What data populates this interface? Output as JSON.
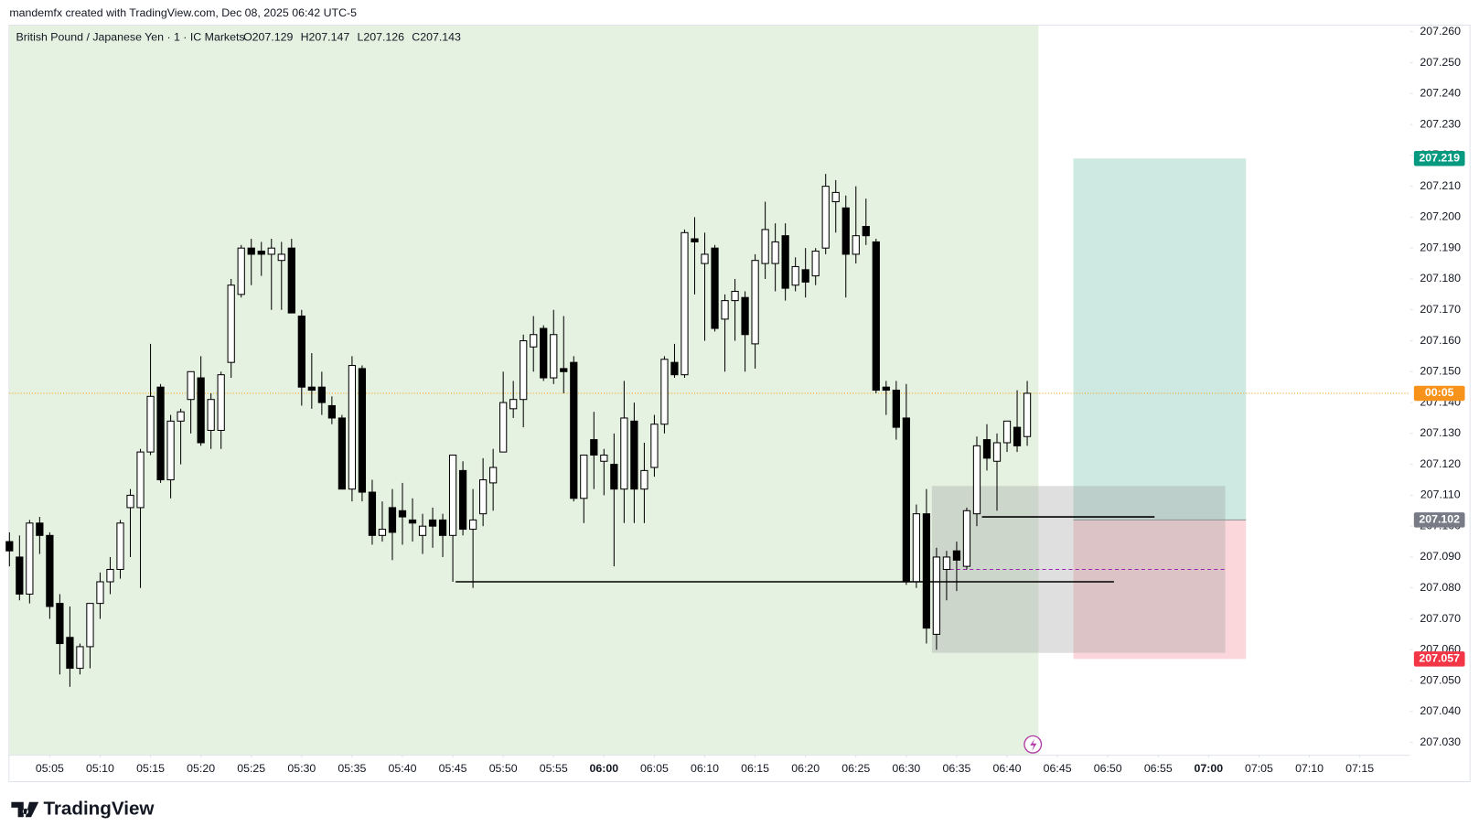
{
  "header": {
    "credit": "mandemfx created with TradingView.com, Dec 08, 2025 06:42 UTC-5",
    "brand": "TradingView"
  },
  "chart_data": {
    "type": "candlestick",
    "title": "British Pound / Japanese Yen · 1 · IC Markets",
    "ohlc_labels": [
      "O207.129",
      "H207.147",
      "L207.126",
      "C207.143"
    ],
    "x": [
      "05:01",
      "05:02",
      "05:03",
      "05:04",
      "05:05",
      "05:06",
      "05:07",
      "05:08",
      "05:09",
      "05:10",
      "05:11",
      "05:12",
      "05:13",
      "05:14",
      "05:15",
      "05:16",
      "05:17",
      "05:18",
      "05:19",
      "05:20",
      "05:21",
      "05:22",
      "05:23",
      "05:24",
      "05:25",
      "05:26",
      "05:27",
      "05:28",
      "05:29",
      "05:30",
      "05:31",
      "05:32",
      "05:33",
      "05:34",
      "05:35",
      "05:36",
      "05:37",
      "05:38",
      "05:39",
      "05:40",
      "05:41",
      "05:42",
      "05:43",
      "05:44",
      "05:45",
      "05:46",
      "05:47",
      "05:48",
      "05:49",
      "05:50",
      "05:51",
      "05:52",
      "05:53",
      "05:54",
      "05:55",
      "05:56",
      "05:57",
      "05:58",
      "05:59",
      "06:00",
      "06:01",
      "06:02",
      "06:03",
      "06:04",
      "06:05",
      "06:06",
      "06:07",
      "06:08",
      "06:09",
      "06:10",
      "06:11",
      "06:12",
      "06:13",
      "06:14",
      "06:15",
      "06:16",
      "06:17",
      "06:18",
      "06:19",
      "06:20",
      "06:21",
      "06:22",
      "06:23",
      "06:24",
      "06:25",
      "06:26",
      "06:27",
      "06:28",
      "06:29",
      "06:30",
      "06:31",
      "06:32",
      "06:33",
      "06:34",
      "06:35",
      "06:36",
      "06:37",
      "06:38",
      "06:39",
      "06:40",
      "06:41",
      "06:42"
    ],
    "open": [
      207.095,
      207.09,
      207.078,
      207.101,
      207.097,
      207.075,
      207.064,
      207.054,
      207.061,
      207.075,
      207.082,
      207.086,
      207.106,
      207.106,
      207.124,
      207.145,
      207.115,
      207.134,
      207.141,
      207.148,
      207.131,
      207.131,
      207.153,
      207.175,
      207.19,
      207.189,
      207.188,
      207.186,
      207.19,
      207.168,
      207.145,
      207.145,
      207.139,
      207.135,
      207.112,
      207.151,
      207.111,
      207.097,
      207.106,
      207.105,
      207.102,
      207.097,
      207.102,
      207.102,
      207.097,
      207.118,
      207.099,
      207.104,
      207.114,
      207.124,
      207.138,
      207.141,
      207.158,
      207.164,
      207.148,
      207.151,
      207.153,
      207.109,
      207.128,
      207.121,
      207.12,
      207.112,
      207.134,
      207.112,
      207.119,
      207.133,
      207.153,
      207.149,
      207.193,
      207.185,
      207.19,
      207.167,
      207.173,
      207.174,
      207.159,
      207.185,
      207.185,
      207.194,
      207.178,
      207.183,
      207.181,
      207.19,
      207.205,
      207.203,
      207.188,
      207.197,
      207.192,
      207.145,
      207.144,
      207.135,
      207.082,
      207.104,
      207.065,
      207.086,
      207.092,
      207.087,
      207.104,
      207.128,
      207.121,
      207.127,
      207.132,
      207.129
    ],
    "high": [
      207.098,
      207.097,
      207.102,
      207.103,
      207.098,
      207.078,
      207.074,
      207.062,
      207.074,
      207.085,
      207.09,
      207.102,
      207.112,
      207.125,
      207.159,
      207.146,
      207.136,
      207.138,
      207.15,
      207.155,
      207.143,
      207.15,
      207.18,
      207.191,
      207.193,
      207.192,
      207.193,
      207.192,
      207.193,
      207.17,
      207.156,
      207.15,
      207.142,
      207.136,
      207.155,
      207.152,
      207.115,
      207.108,
      207.112,
      207.114,
      207.109,
      207.104,
      207.106,
      207.104,
      207.123,
      207.121,
      207.112,
      207.122,
      207.125,
      207.15,
      207.147,
      207.162,
      207.168,
      207.165,
      207.17,
      207.168,
      207.155,
      207.123,
      207.137,
      207.125,
      207.13,
      207.147,
      207.14,
      207.127,
      207.136,
      207.155,
      207.159,
      207.196,
      207.2,
      207.195,
      207.191,
      207.175,
      207.18,
      207.176,
      207.188,
      207.205,
      207.198,
      207.198,
      207.187,
      207.19,
      207.19,
      207.214,
      207.212,
      207.207,
      207.21,
      207.206,
      207.193,
      207.147,
      207.147,
      207.146,
      207.107,
      207.112,
      207.093,
      207.092,
      207.095,
      207.106,
      207.129,
      207.133,
      207.13,
      207.134,
      207.144,
      207.147
    ],
    "low": [
      207.087,
      207.076,
      207.075,
      207.091,
      207.07,
      207.052,
      207.048,
      207.052,
      207.054,
      207.07,
      207.078,
      207.083,
      207.09,
      207.08,
      207.123,
      207.114,
      207.109,
      207.12,
      207.13,
      207.126,
      207.125,
      207.125,
      207.148,
      207.174,
      207.178,
      207.181,
      207.17,
      207.17,
      207.169,
      207.139,
      207.138,
      207.136,
      207.133,
      207.112,
      207.108,
      207.108,
      207.094,
      207.095,
      207.089,
      207.094,
      207.095,
      207.091,
      207.093,
      207.09,
      207.082,
      207.097,
      207.08,
      207.1,
      207.105,
      207.124,
      207.135,
      207.132,
      207.15,
      207.147,
      207.146,
      207.143,
      207.108,
      207.101,
      207.112,
      207.11,
      207.087,
      207.101,
      207.101,
      207.101,
      207.116,
      207.13,
      207.148,
      207.148,
      207.175,
      207.16,
      207.163,
      207.15,
      207.16,
      207.15,
      207.151,
      207.18,
      207.176,
      207.173,
      207.176,
      207.174,
      207.178,
      207.188,
      207.195,
      207.174,
      207.185,
      207.191,
      207.143,
      207.136,
      207.128,
      207.081,
      207.08,
      207.062,
      207.06,
      207.076,
      207.079,
      207.086,
      207.1,
      207.118,
      207.105,
      207.124,
      207.124,
      207.126
    ],
    "close": [
      207.092,
      207.078,
      207.101,
      207.097,
      207.074,
      207.062,
      207.054,
      207.061,
      207.075,
      207.082,
      207.086,
      207.101,
      207.11,
      207.124,
      207.142,
      207.115,
      207.134,
      207.137,
      207.15,
      207.127,
      207.141,
      207.149,
      207.178,
      207.19,
      207.188,
      207.188,
      207.19,
      207.188,
      207.169,
      207.145,
      207.144,
      207.14,
      207.135,
      207.112,
      207.152,
      207.111,
      207.097,
      207.099,
      207.098,
      207.103,
      207.101,
      207.1,
      207.1,
      207.097,
      207.123,
      207.099,
      207.102,
      207.115,
      207.119,
      207.14,
      207.141,
      207.16,
      207.162,
      207.148,
      207.162,
      207.15,
      207.109,
      207.123,
      207.123,
      207.123,
      207.112,
      207.135,
      207.112,
      207.118,
      207.133,
      207.154,
      207.149,
      207.195,
      207.192,
      207.188,
      207.164,
      207.173,
      207.176,
      207.162,
      207.186,
      207.196,
      207.192,
      207.177,
      207.184,
      207.179,
      207.189,
      207.21,
      207.208,
      207.188,
      207.194,
      207.194,
      207.144,
      207.144,
      207.132,
      207.082,
      207.104,
      207.067,
      207.09,
      207.09,
      207.089,
      207.105,
      207.126,
      207.122,
      207.127,
      207.134,
      207.126,
      207.143
    ],
    "up_color": "#ffffff",
    "down_color": "#000000",
    "wick_color": "#000000",
    "xlim": [
      "05:01",
      "07:20"
    ],
    "xticks": [
      "05:05",
      "05:10",
      "05:15",
      "05:20",
      "05:25",
      "05:30",
      "05:35",
      "05:40",
      "05:45",
      "05:50",
      "05:55",
      "06:00",
      "06:05",
      "06:10",
      "06:15",
      "06:20",
      "06:25",
      "06:30",
      "06:35",
      "06:40",
      "06:45",
      "06:50",
      "06:55",
      "07:00",
      "07:05",
      "07:10",
      "07:15"
    ],
    "ylim": [
      207.026,
      207.262
    ],
    "yticks": [
      {
        "value": 207.03,
        "label": "207.030"
      },
      {
        "value": 207.04,
        "label": "207.040"
      },
      {
        "value": 207.05,
        "label": "207.050"
      },
      {
        "value": 207.06,
        "label": "207.060"
      },
      {
        "value": 207.07,
        "label": "207.070"
      },
      {
        "value": 207.08,
        "label": "207.080"
      },
      {
        "value": 207.09,
        "label": "207.090"
      },
      {
        "value": 207.1,
        "label": "207.100"
      },
      {
        "value": 207.11,
        "label": "207.110"
      },
      {
        "value": 207.12,
        "label": "207.120"
      },
      {
        "value": 207.13,
        "label": "207.130"
      },
      {
        "value": 207.14,
        "label": "207.140"
      },
      {
        "value": 207.15,
        "label": "207.150"
      },
      {
        "value": 207.16,
        "label": "207.160"
      },
      {
        "value": 207.17,
        "label": "207.170"
      },
      {
        "value": 207.18,
        "label": "207.180"
      },
      {
        "value": 207.19,
        "label": "207.190"
      },
      {
        "value": 207.2,
        "label": "207.200"
      },
      {
        "value": 207.21,
        "label": "207.210"
      },
      {
        "value": 207.22,
        "label": "207.220"
      },
      {
        "value": 207.23,
        "label": "207.230"
      },
      {
        "value": 207.24,
        "label": "207.240"
      },
      {
        "value": 207.25,
        "label": "207.250"
      },
      {
        "value": 207.26,
        "label": "207.260"
      }
    ],
    "grid": false,
    "countdown": "00:05",
    "position": {
      "target": 207.219,
      "entry": 207.102,
      "stop": 207.057
    },
    "range_box": {
      "top": 207.113,
      "bottom": 207.059
    },
    "levels": [
      207.082,
      207.103
    ],
    "mid_level": 207.086
  }
}
